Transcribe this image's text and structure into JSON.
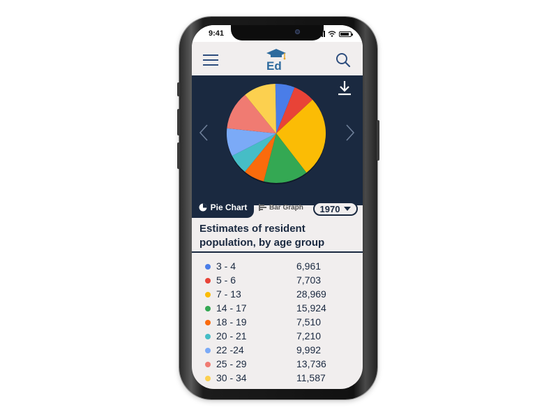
{
  "status_bar": {
    "time": "9:41"
  },
  "header": {
    "logo_text": "Ed",
    "menu_icon": "hamburger-menu-icon",
    "search_icon": "search-icon"
  },
  "chart_panel": {
    "download_icon": "download-icon",
    "prev_icon": "chevron-left-icon",
    "next_icon": "chevron-right-icon"
  },
  "tabs": {
    "pie_label": "Pie Chart",
    "bar_label": "Bar Graph"
  },
  "year_select": {
    "value": "1970"
  },
  "title": "Estimates of resident population, by age group",
  "colors": {
    "navy": "#1a2940",
    "background": "#f1eeee"
  },
  "chart_data": {
    "type": "pie",
    "categories": [
      "3 - 4",
      "5 - 6",
      "7 - 13",
      "14 - 17",
      "18 - 19",
      "20 - 21",
      "22 -24",
      "25 - 29",
      "30 - 34"
    ],
    "values": [
      6961,
      7703,
      28969,
      15924,
      7510,
      7210,
      9992,
      13736,
      11587
    ],
    "value_labels": [
      "6,961",
      "7,703",
      "28,969",
      "15,924",
      "7,510",
      "7,210",
      "9,992",
      "13,736",
      "11,587"
    ],
    "colors": [
      "#4a7de8",
      "#e84337",
      "#fbbc05",
      "#34a853",
      "#fa6b0c",
      "#46bdc6",
      "#7baaf7",
      "#f07b72",
      "#fcd04f"
    ],
    "legend_placement": "bottom"
  }
}
